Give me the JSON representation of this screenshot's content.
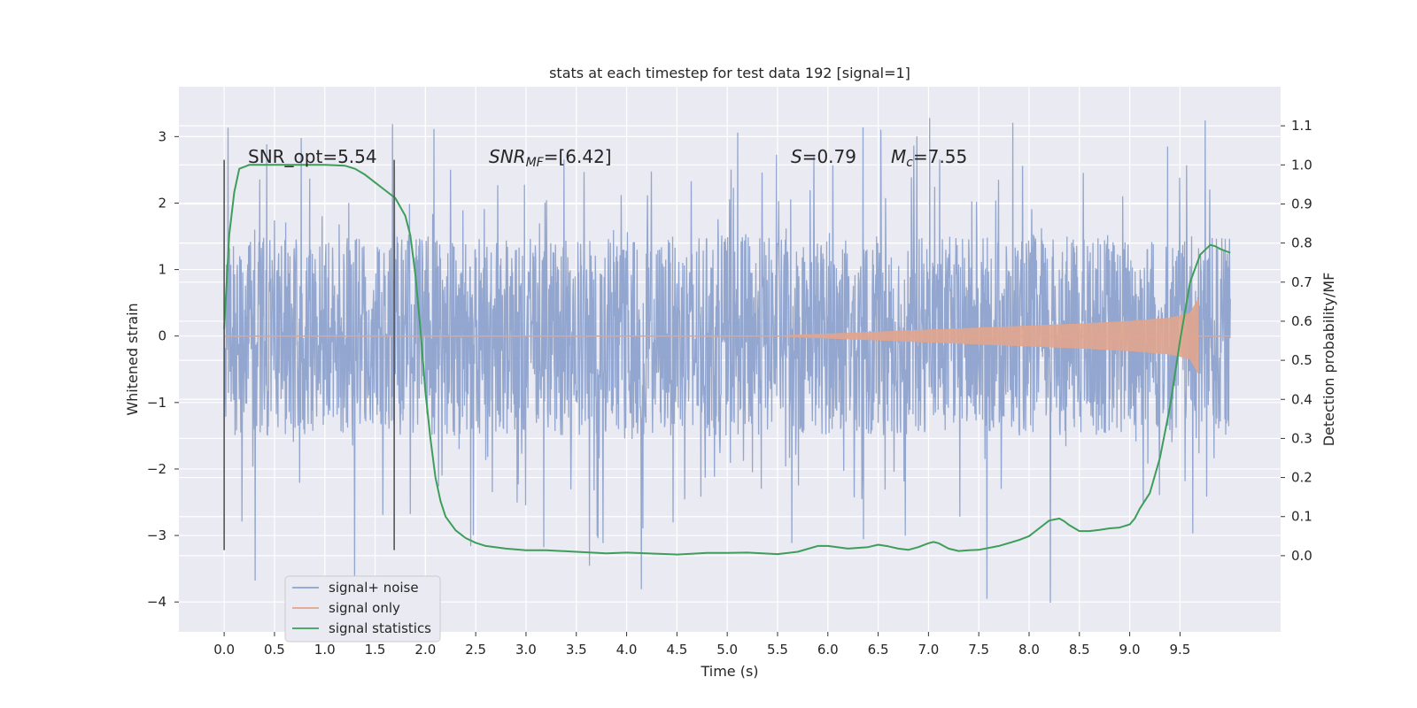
{
  "chart_data": {
    "type": "line",
    "title": "stats at each timestep for test data 192 [signal=1]",
    "xlabel": "Time (s)",
    "ylabel_left": "Whitened strain",
    "ylabel_right": "Detection probability/MF",
    "xlim": [
      -0.45,
      10.5
    ],
    "ylim_left": [
      -4.45,
      3.75
    ],
    "ylim_right": [
      -0.195,
      1.2
    ],
    "x_ticks": [
      "0.0",
      "0.5",
      "1.0",
      "1.5",
      "2.0",
      "2.5",
      "3.0",
      "3.5",
      "4.0",
      "4.5",
      "5.0",
      "5.5",
      "6.0",
      "6.5",
      "7.0",
      "7.5",
      "8.0",
      "8.5",
      "9.0",
      "9.5"
    ],
    "y_left_ticks": [
      "3",
      "2",
      "1",
      "0",
      "−1",
      "−2",
      "−3",
      "−4"
    ],
    "y_right_ticks": [
      "1.1",
      "1.0",
      "0.9",
      "0.8",
      "0.7",
      "0.6",
      "0.5",
      "0.4",
      "0.3",
      "0.2",
      "0.1",
      "0.0"
    ],
    "grid": true,
    "legend_position": "lower-left",
    "annotations": {
      "snr_opt": "SNR_opt=5.54",
      "snr_mf_sym": "SNR",
      "snr_mf_sub": "MF",
      "snr_mf_val": "=[6.42]",
      "s_sym": "S",
      "s_val": "=0.79",
      "mc_sym": "M",
      "mc_sub": "c",
      "mc_val": "=7.55"
    },
    "vertical_markers": [
      {
        "x": 0.0,
        "y_range": [
          -3.22,
          2.65
        ]
      },
      {
        "x": 1.69,
        "y_range": [
          -3.22,
          2.65
        ]
      }
    ],
    "series": [
      {
        "name": "signal+ noise",
        "color": "#8da2cc",
        "x_range": [
          0.0,
          10.0
        ],
        "amplitude_envelope": {
          "core": 1.5,
          "spike_max": 3.3,
          "spike_min": -4.05
        }
      },
      {
        "name": "signal only",
        "color": "#e1a58e",
        "envelope": {
          "x": [
            0.0,
            5.5,
            6.5,
            7.5,
            8.5,
            9.0,
            9.4,
            9.6,
            9.68
          ],
          "amplitude": [
            0.0,
            0.0,
            0.06,
            0.12,
            0.18,
            0.22,
            0.27,
            0.34,
            0.55
          ]
        },
        "tail": {
          "x": [
            9.68,
            10.0
          ],
          "value": 0.0
        }
      },
      {
        "name": "signal statistics",
        "color": "#3d9e59",
        "axis": "right",
        "x": [
          0.0,
          0.05,
          0.1,
          0.15,
          0.25,
          0.4,
          0.6,
          0.8,
          1.0,
          1.2,
          1.3,
          1.4,
          1.5,
          1.6,
          1.7,
          1.8,
          1.85,
          1.9,
          1.95,
          2.0,
          2.05,
          2.1,
          2.15,
          2.2,
          2.3,
          2.4,
          2.5,
          2.6,
          2.8,
          3.0,
          3.2,
          3.5,
          3.8,
          4.0,
          4.2,
          4.5,
          4.8,
          5.0,
          5.2,
          5.5,
          5.7,
          5.9,
          6.0,
          6.2,
          6.4,
          6.5,
          6.6,
          6.7,
          6.8,
          6.9,
          7.0,
          7.05,
          7.1,
          7.2,
          7.3,
          7.4,
          7.5,
          7.7,
          7.9,
          8.0,
          8.1,
          8.2,
          8.3,
          8.35,
          8.4,
          8.5,
          8.6,
          8.7,
          8.8,
          8.9,
          9.0,
          9.05,
          9.1,
          9.2,
          9.3,
          9.4,
          9.5,
          9.6,
          9.7,
          9.8,
          9.85,
          9.9,
          9.95,
          10.0
        ],
        "y": [
          0.58,
          0.82,
          0.93,
          0.99,
          1.0,
          1.0,
          1.0,
          1.0,
          1.0,
          0.998,
          0.99,
          0.975,
          0.955,
          0.935,
          0.915,
          0.87,
          0.82,
          0.72,
          0.58,
          0.42,
          0.3,
          0.2,
          0.14,
          0.1,
          0.065,
          0.045,
          0.033,
          0.025,
          0.018,
          0.014,
          0.014,
          0.01,
          0.006,
          0.008,
          0.006,
          0.003,
          0.007,
          0.007,
          0.008,
          0.004,
          0.01,
          0.025,
          0.025,
          0.018,
          0.022,
          0.028,
          0.024,
          0.018,
          0.015,
          0.022,
          0.032,
          0.035,
          0.032,
          0.018,
          0.012,
          0.014,
          0.015,
          0.025,
          0.04,
          0.05,
          0.07,
          0.09,
          0.095,
          0.088,
          0.078,
          0.063,
          0.063,
          0.066,
          0.07,
          0.072,
          0.08,
          0.095,
          0.12,
          0.16,
          0.25,
          0.38,
          0.55,
          0.7,
          0.77,
          0.795,
          0.792,
          0.785,
          0.78,
          0.775
        ]
      }
    ]
  }
}
